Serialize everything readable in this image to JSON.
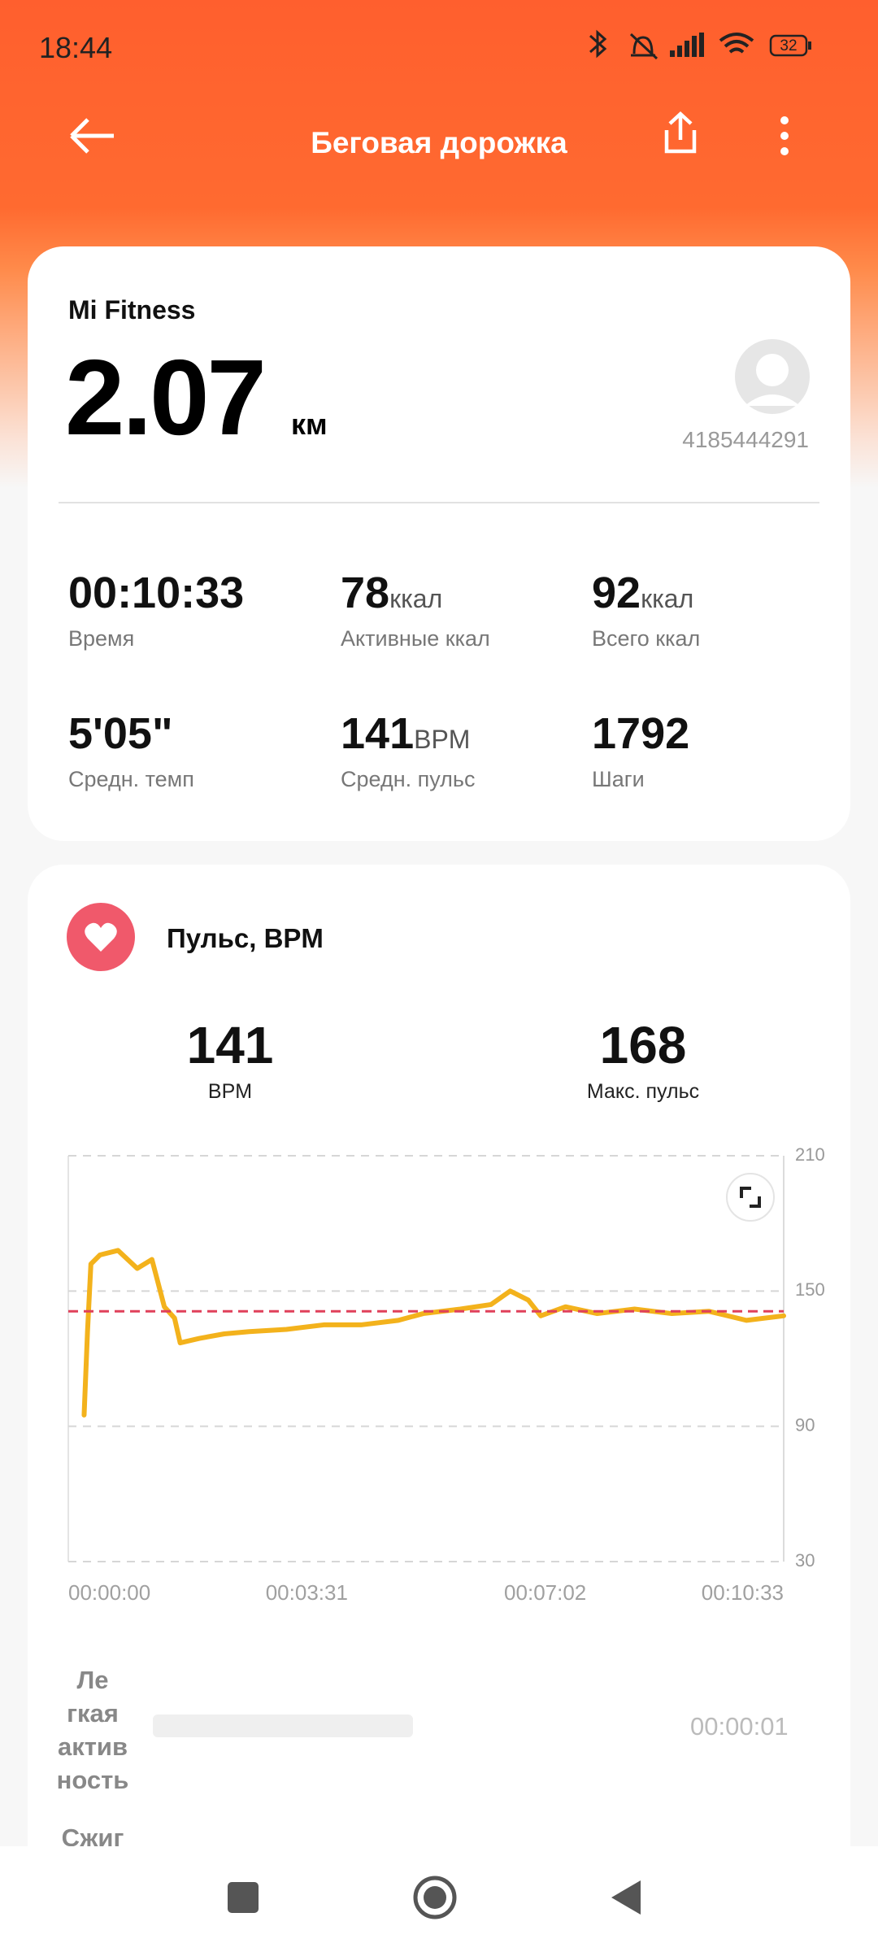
{
  "status_bar": {
    "time": "18:44",
    "battery": "32"
  },
  "header": {
    "title": "Беговая дорожка"
  },
  "summary": {
    "source": "Mi Fitness",
    "distance": "2.07",
    "distance_unit": "км",
    "user_id": "4185444291",
    "stats": [
      {
        "value": "00:10:33",
        "label": "Время"
      },
      {
        "value": "78",
        "unit": "ккал",
        "label": "Активные ккал"
      },
      {
        "value": "92",
        "unit": "ккал",
        "label": "Всего ккал"
      },
      {
        "value": "5'05\"",
        "label": "Средн. темп"
      },
      {
        "value": "141",
        "unit": "BPM",
        "label": "Средн. пульс"
      },
      {
        "value": "1792",
        "label": "Шаги"
      }
    ]
  },
  "heart_rate": {
    "title": "Пульс, BPM",
    "avg": 141,
    "avg_label": "BPM",
    "max": 168,
    "max_label": "Макс. пульс",
    "chart_data": {
      "type": "line",
      "color": "#f3b21c",
      "avg_color": "#e0405a",
      "x": [
        14,
        17,
        20,
        28,
        44,
        61,
        74,
        85,
        94,
        99,
        116,
        138,
        160,
        193,
        226,
        259,
        292,
        314,
        347,
        374,
        391,
        407,
        418,
        440,
        468,
        501,
        534,
        567,
        600,
        633
      ],
      "values": [
        95,
        132,
        162,
        166,
        168,
        160,
        164,
        143,
        138,
        127,
        129,
        131,
        132,
        133,
        135,
        135,
        137,
        140,
        142,
        144,
        150,
        146,
        139,
        143,
        140,
        142,
        140,
        141,
        137,
        139
      ],
      "xlim": [
        0,
        633
      ],
      "xticks": [
        {
          "value": 0,
          "label": "00:00:00"
        },
        {
          "value": 211,
          "label": "00:03:31"
        },
        {
          "value": 422,
          "label": "00:07:02"
        },
        {
          "value": 633,
          "label": "00:10:33"
        }
      ],
      "ylim": [
        30,
        210
      ],
      "yticks": [
        30,
        90,
        150,
        210
      ],
      "grid": true
    },
    "zones": [
      {
        "label_lines": [
          "Ле",
          "гкая",
          "актив",
          "ность"
        ],
        "duration": "00:00:01"
      },
      {
        "label_lines": [
          "Сжиг"
        ]
      }
    ]
  }
}
